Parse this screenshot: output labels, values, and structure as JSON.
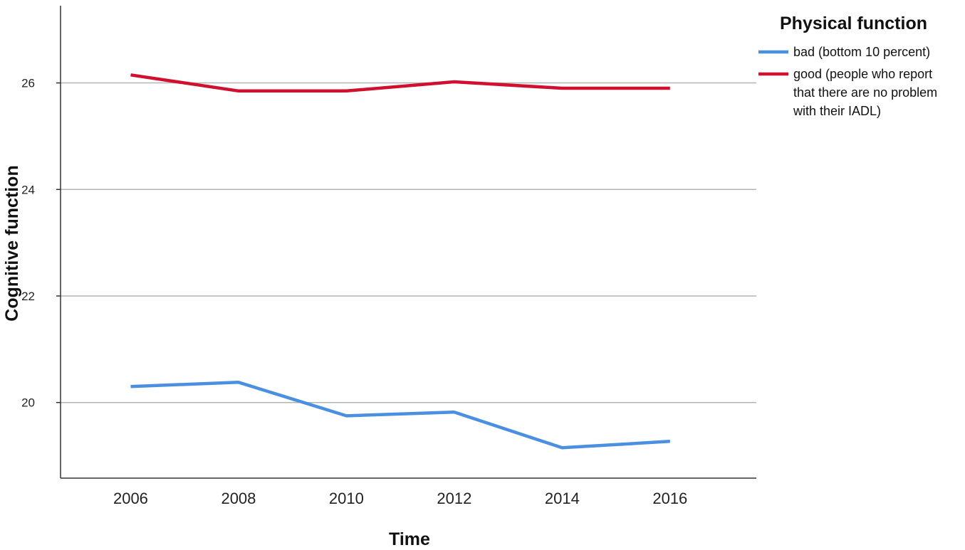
{
  "chart_data": {
    "type": "line",
    "xlabel": "Time",
    "ylabel": "Cognitive function",
    "x": [
      2006,
      2008,
      2010,
      2012,
      2014,
      2016
    ],
    "x_ticks": [
      "2006",
      "2008",
      "2010",
      "2012",
      "2014",
      "2016"
    ],
    "xlim": [
      2004.7,
      2017.6
    ],
    "ylim": [
      18.58,
      27.45
    ],
    "y_ticks": [
      20,
      22,
      24,
      26
    ],
    "grid": "horizontal",
    "legend": {
      "title": "Physical function",
      "placement": "right",
      "entries": [
        {
          "label": "bad (bottom 10 percent)",
          "lines": [
            "bad (bottom 10 percent)"
          ]
        },
        {
          "label": "good (people who report that there are no problem with their IADL)",
          "lines": [
            "good (people who report",
            "that there are no problem",
            "with their IADL)"
          ]
        }
      ]
    },
    "series": [
      {
        "name": "bad (bottom 10 percent)",
        "color": "#4a8fe0",
        "values": [
          20.3,
          20.38,
          19.75,
          19.82,
          19.15,
          19.27
        ]
      },
      {
        "name": "good (people who report that there are no problem with their IADL)",
        "color": "#d0102e",
        "values": [
          26.15,
          25.85,
          25.85,
          26.02,
          25.9,
          25.9
        ]
      }
    ]
  }
}
